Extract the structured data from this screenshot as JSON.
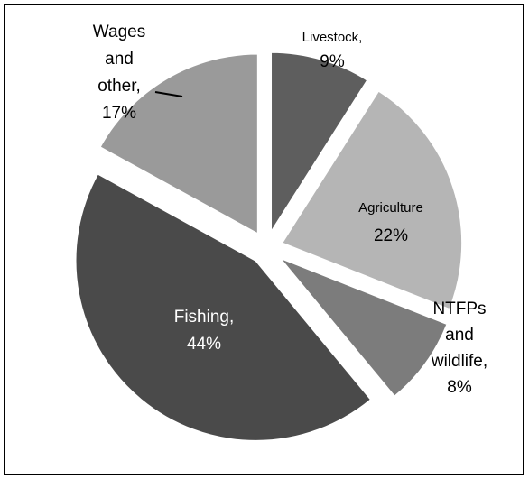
{
  "chart_data": {
    "type": "pie",
    "title": "",
    "exploded": true,
    "slices": [
      {
        "key": "livestock",
        "lines": [
          "Livestock,",
          "9%"
        ],
        "value": 9,
        "color": "#5e5e5e",
        "text_color": "#000000"
      },
      {
        "key": "agriculture",
        "lines": [
          "Agriculture",
          "22%"
        ],
        "value": 22,
        "color": "#b5b5b5",
        "text_color": "#000000"
      },
      {
        "key": "ntfps",
        "lines": [
          "NTFPs",
          "and",
          "wildlife,",
          "8%"
        ],
        "value": 8,
        "color": "#7c7c7c",
        "text_color": "#000000"
      },
      {
        "key": "fishing",
        "lines": [
          "Fishing,",
          "44%"
        ],
        "value": 44,
        "color": "#4a4a4a",
        "text_color": "#ffffff"
      },
      {
        "key": "wages",
        "lines": [
          "Wages",
          "and",
          "other,",
          "17%"
        ],
        "value": 17,
        "color": "#9a9a9a",
        "text_color": "#000000"
      }
    ]
  }
}
